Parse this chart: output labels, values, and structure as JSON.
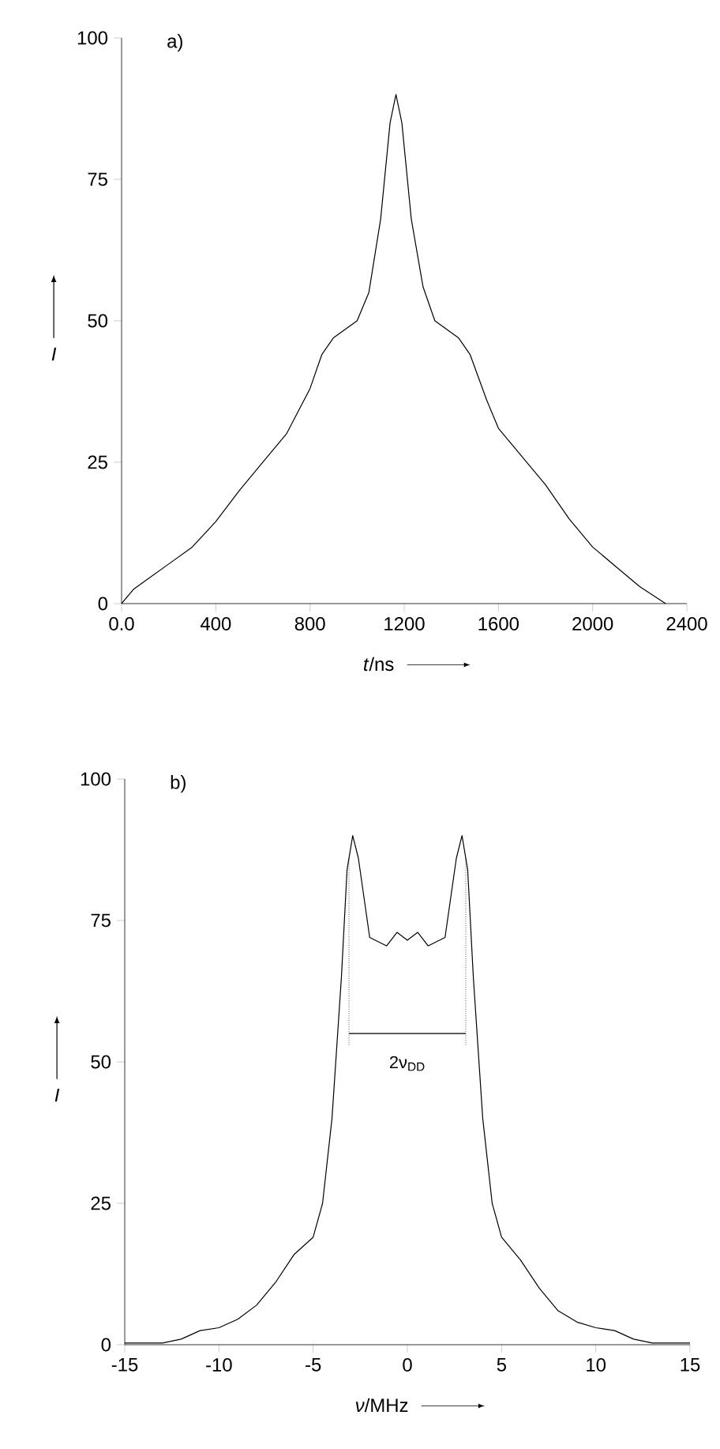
{
  "chart_data": [
    {
      "type": "line",
      "title": "a)",
      "xlabel": "*t*/ns",
      "ylabel": "I",
      "color": "#000000",
      "xlim": [
        0,
        2400
      ],
      "ylim": [
        0,
        100
      ],
      "xticks": [
        {
          "value": 0,
          "label": "0.0"
        },
        400,
        800,
        1200,
        1600,
        2000,
        2400
      ],
      "yticks": [
        0,
        25,
        50,
        75,
        100
      ],
      "x": [
        0,
        50,
        100,
        200,
        300,
        400,
        500,
        600,
        700,
        800,
        850,
        900,
        1000,
        1050,
        1100,
        1140,
        1165,
        1190,
        1230,
        1280,
        1330,
        1430,
        1480,
        1550,
        1600,
        1700,
        1800,
        1900,
        2000,
        2100,
        2200,
        2310
      ],
      "values": [
        0,
        2.5,
        4,
        7,
        10,
        14.5,
        20,
        25,
        30,
        38,
        44,
        47,
        50,
        55,
        68,
        85,
        90,
        85,
        68,
        56,
        50,
        47,
        44,
        36,
        31,
        26,
        21,
        15,
        10,
        6.5,
        3,
        0
      ]
    },
    {
      "type": "line",
      "title": "b)",
      "xlabel": "*ν*/MHz",
      "ylabel": "I",
      "color": "#000000",
      "xlim": [
        -15,
        15
      ],
      "ylim": [
        0,
        100
      ],
      "xticks": [
        -15,
        -10,
        -5,
        0,
        5,
        10,
        15
      ],
      "yticks": [
        0,
        25,
        50,
        75,
        100
      ],
      "x": [
        -15,
        -13,
        -12,
        -11,
        -10,
        -9,
        -8,
        -7,
        -6,
        -5,
        -4.5,
        -4,
        -3.5,
        -3.2,
        -2.9,
        -2.6,
        -2,
        -1.1,
        -0.55,
        0,
        0.55,
        1.1,
        2,
        2.6,
        2.9,
        3.2,
        3.5,
        4,
        4.5,
        5,
        6,
        7,
        8,
        9,
        10,
        11,
        12,
        13,
        15
      ],
      "values": [
        0.3,
        0.3,
        1,
        2.5,
        3,
        4.5,
        7,
        11,
        16,
        19,
        25,
        40,
        65,
        84,
        90,
        86,
        72,
        70.5,
        72.9,
        71.5,
        72.9,
        70.5,
        72,
        86,
        90,
        84,
        65,
        40,
        25,
        19,
        15,
        10,
        6,
        4,
        3,
        2.5,
        1,
        0.3,
        0.3
      ],
      "ref_lines": [
        {
          "axis": "x",
          "value": -3.1,
          "line_style": "dotted"
        },
        {
          "axis": "x",
          "value": 3.1,
          "line_style": "dotted"
        }
      ],
      "series": [
        {
          "type": "line",
          "color": "#000000",
          "x": [
            -3.1,
            3.1
          ],
          "values": [
            55,
            55
          ]
        }
      ],
      "annotations": [
        "2ν$_{DD}$"
      ]
    }
  ]
}
